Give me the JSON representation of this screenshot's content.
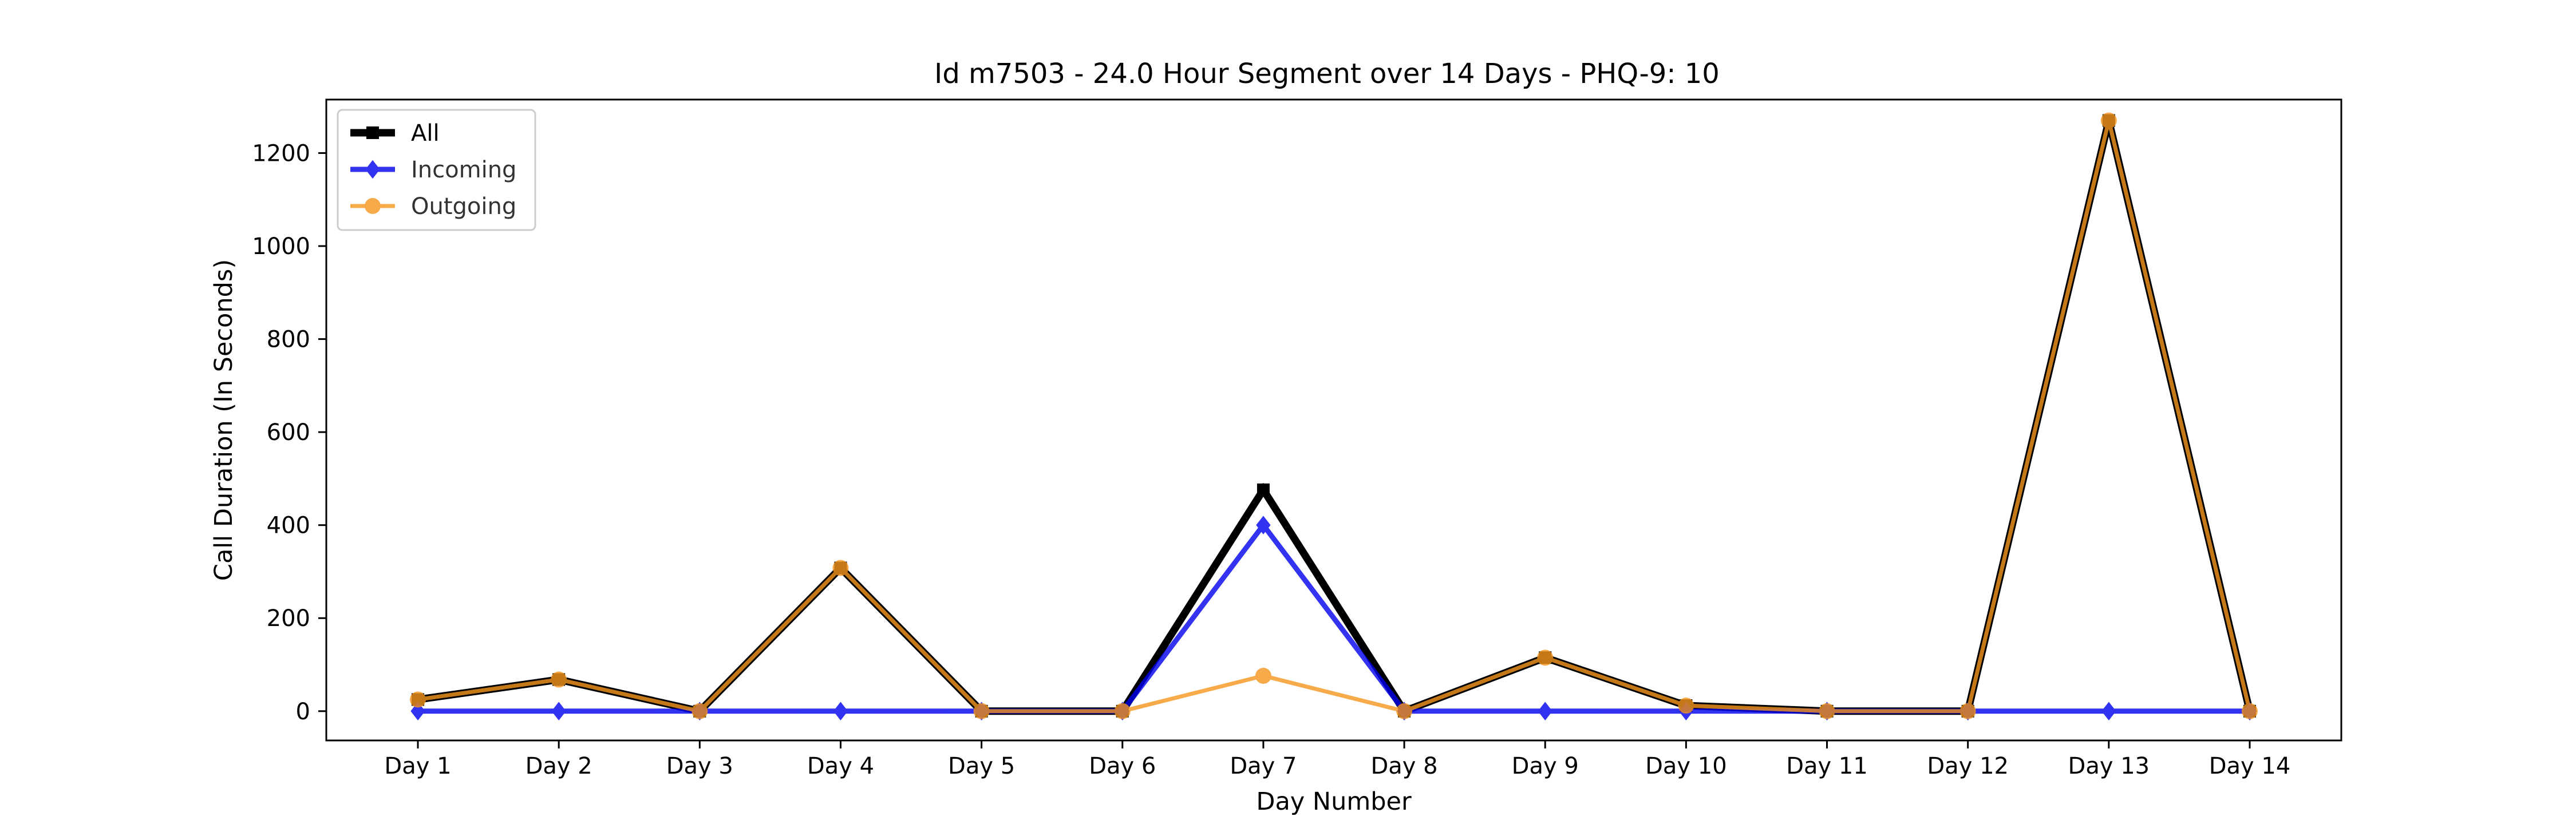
{
  "chart_data": {
    "type": "line",
    "title": "Id m7503 - 24.0 Hour Segment over 14 Days - PHQ-9: 10",
    "xlabel": "Day Number",
    "ylabel": "Call Duration (In Seconds)",
    "categories": [
      "Day 1",
      "Day 2",
      "Day 3",
      "Day 4",
      "Day 5",
      "Day 6",
      "Day 7",
      "Day 8",
      "Day 9",
      "Day 10",
      "Day 11",
      "Day 12",
      "Day 13",
      "Day 14"
    ],
    "ylim": [
      -63,
      1315
    ],
    "yticks": [
      0,
      200,
      400,
      600,
      800,
      1000,
      1200
    ],
    "grid": false,
    "legend_position": "top-left",
    "series": [
      {
        "name": "All",
        "color": "#000000",
        "marker": "square",
        "values": [
          25,
          68,
          0,
          308,
          0,
          0,
          476,
          0,
          115,
          12,
          0,
          0,
          1270,
          0
        ]
      },
      {
        "name": "Incoming",
        "color": "#0000ee",
        "marker": "diamond",
        "values": [
          0,
          0,
          0,
          0,
          0,
          0,
          400,
          0,
          0,
          0,
          0,
          0,
          0,
          0
        ]
      },
      {
        "name": "Outgoing",
        "color": "#f5961e",
        "marker": "circle",
        "values": [
          25,
          68,
          0,
          308,
          0,
          0,
          76,
          0,
          115,
          12,
          0,
          0,
          1270,
          0
        ]
      }
    ]
  }
}
